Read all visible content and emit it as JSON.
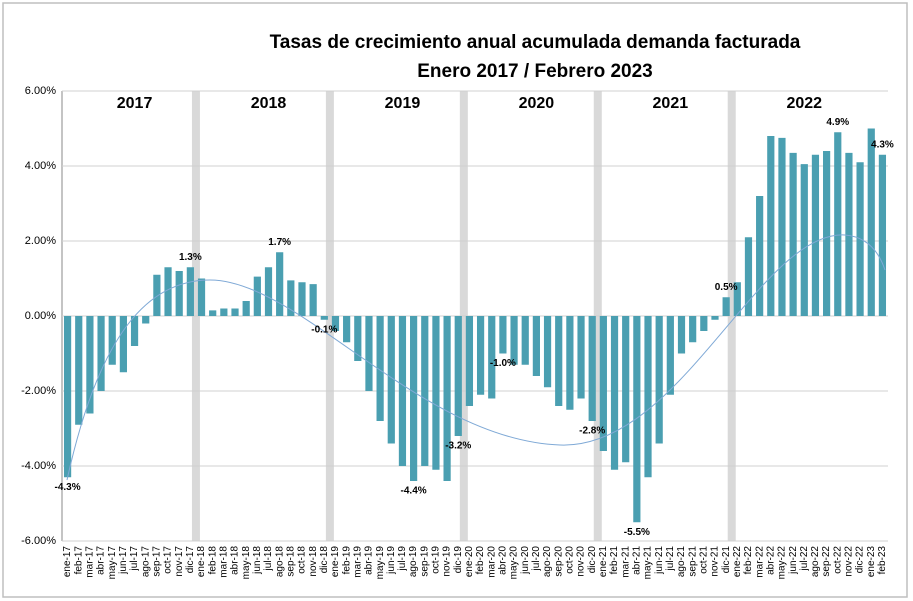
{
  "chart_data": {
    "type": "bar",
    "title": "Tasas de crecimiento anual acumulada demanda facturada",
    "subtitle": "Enero 2017 / Febrero 2023",
    "color": "#4a9fb1",
    "grid": true,
    "ylim": [
      -6,
      6
    ],
    "yticks": [
      {
        "value": -6,
        "label": "-6.00%"
      },
      {
        "value": -4,
        "label": "-4.00%"
      },
      {
        "value": -2,
        "label": "-2.00%"
      },
      {
        "value": 0,
        "label": "0.00%"
      },
      {
        "value": 2,
        "label": "2.00%"
      },
      {
        "value": 4,
        "label": "4.00%"
      },
      {
        "value": 6,
        "label": "6.00%"
      }
    ],
    "year_labels": [
      "2017",
      "2018",
      "2019",
      "2020",
      "2021",
      "2022"
    ],
    "categories": [
      "ene-17",
      "feb-17",
      "mar-17",
      "abr-17",
      "may-17",
      "jun-17",
      "jul-17",
      "ago-17",
      "sep-17",
      "oct-17",
      "nov-17",
      "dic-17",
      "ene-18",
      "feb-18",
      "mar-18",
      "abr-18",
      "may-18",
      "jun-18",
      "jul-18",
      "ago-18",
      "sep-18",
      "oct-18",
      "nov-18",
      "dic-18",
      "ene-19",
      "feb-19",
      "mar-19",
      "abr-19",
      "may-19",
      "jun-19",
      "jul-19",
      "ago-19",
      "sep-19",
      "oct-19",
      "nov-19",
      "dic-19",
      "ene-20",
      "feb-20",
      "mar-20",
      "abr-20",
      "may-20",
      "jun-20",
      "jul-20",
      "ago-20",
      "sep-20",
      "oct-20",
      "nov-20",
      "dic-20",
      "ene-21",
      "feb-21",
      "mar-21",
      "abr-21",
      "may-21",
      "jun-21",
      "jul-21",
      "ago-21",
      "sep-21",
      "oct-21",
      "nov-21",
      "dic-21",
      "ene-22",
      "feb-22",
      "mar-22",
      "abr-22",
      "may-22",
      "jun-22",
      "jul-22",
      "ago-22",
      "sep-22",
      "oct-22",
      "nov-22",
      "dic-22",
      "ene-23",
      "feb-23"
    ],
    "values": [
      -4.3,
      -2.9,
      -2.6,
      -2.0,
      -1.3,
      -1.5,
      -0.8,
      -0.2,
      1.1,
      1.3,
      1.2,
      1.3,
      1.0,
      0.15,
      0.2,
      0.2,
      0.4,
      1.05,
      1.3,
      1.7,
      0.95,
      0.9,
      0.85,
      -0.1,
      -0.4,
      -0.7,
      -1.2,
      -2.0,
      -2.8,
      -3.4,
      -4.0,
      -4.4,
      -4.0,
      -4.1,
      -4.4,
      -3.2,
      -2.4,
      -2.1,
      -2.2,
      -1.0,
      -1.3,
      -1.3,
      -1.6,
      -1.9,
      -2.4,
      -2.5,
      -2.2,
      -2.8,
      -3.6,
      -4.1,
      -3.9,
      -5.5,
      -4.3,
      -3.4,
      -2.1,
      -1.0,
      -0.7,
      -0.4,
      -0.1,
      0.5,
      0.9,
      2.1,
      3.2,
      4.8,
      4.75,
      4.35,
      4.05,
      4.3,
      4.4,
      4.9,
      4.35,
      4.1,
      5.0,
      4.3
    ],
    "value_labels": [
      "-4.3%",
      null,
      null,
      null,
      null,
      null,
      null,
      null,
      null,
      null,
      null,
      "1.3%",
      null,
      null,
      null,
      null,
      null,
      null,
      null,
      "1.7%",
      null,
      null,
      null,
      "-0.1%",
      null,
      null,
      null,
      null,
      null,
      null,
      null,
      "-4.4%",
      null,
      null,
      null,
      "-3.2%",
      null,
      null,
      null,
      "-1.0%",
      null,
      null,
      null,
      null,
      null,
      null,
      null,
      "-2.8%",
      null,
      null,
      null,
      "-5.5%",
      null,
      null,
      null,
      null,
      null,
      null,
      null,
      "0.5%",
      null,
      null,
      null,
      null,
      null,
      null,
      null,
      null,
      null,
      "4.9%",
      null,
      null,
      null,
      "4.3%"
    ]
  }
}
